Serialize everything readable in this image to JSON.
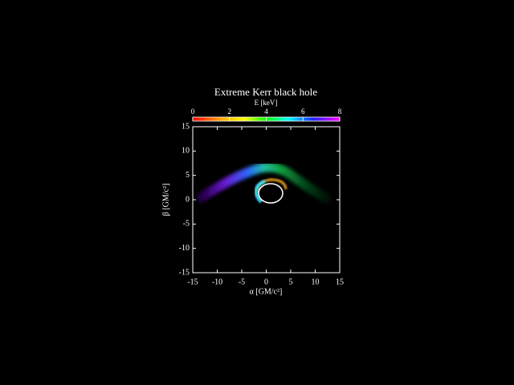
{
  "chart_data": {
    "type": "image",
    "title": "Extreme Kerr black hole",
    "colorbar": {
      "label": "E [keV]",
      "lim": [
        0,
        8
      ],
      "ticks": [
        0,
        2,
        4,
        6,
        8
      ]
    },
    "x_label": "α [GM/c²]",
    "y_label": "β [GM/c²]",
    "xlim": [
      -15,
      15
    ],
    "ylim": [
      -15,
      15
    ],
    "xticks": [
      -15,
      -10,
      -5,
      0,
      5,
      10,
      15
    ],
    "yticks": [
      -15,
      -10,
      -5,
      0,
      5,
      10,
      15
    ]
  }
}
